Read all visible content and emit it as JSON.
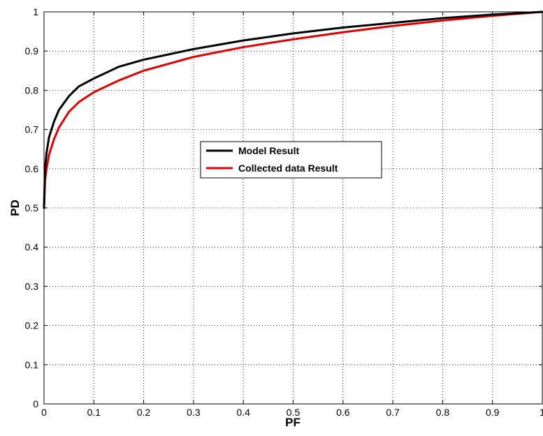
{
  "chart_data": {
    "type": "line",
    "title": "",
    "xlabel": "PF",
    "ylabel": "PD",
    "xlim": [
      0,
      1
    ],
    "ylim": [
      0,
      1
    ],
    "xticks": [
      "0",
      "0.1",
      "0.2",
      "0.3",
      "0.4",
      "0.5",
      "0.6",
      "0.7",
      "0.8",
      "0.9",
      "1"
    ],
    "yticks": [
      "0",
      "0.1",
      "0.2",
      "0.3",
      "0.4",
      "0.5",
      "0.6",
      "0.7",
      "0.8",
      "0.9",
      "1"
    ],
    "grid": true,
    "legend_position": "center-left",
    "series": [
      {
        "name": "Model Result",
        "color": "#000000",
        "x": [
          0,
          0.002,
          0.005,
          0.01,
          0.02,
          0.03,
          0.05,
          0.07,
          0.1,
          0.15,
          0.2,
          0.3,
          0.4,
          0.5,
          0.6,
          0.7,
          0.8,
          0.9,
          1.0
        ],
        "y": [
          0.5,
          0.6,
          0.64,
          0.68,
          0.72,
          0.75,
          0.785,
          0.81,
          0.83,
          0.86,
          0.878,
          0.905,
          0.927,
          0.945,
          0.96,
          0.972,
          0.984,
          0.993,
          1.0
        ]
      },
      {
        "name": "Collected data Result",
        "color": "#e00000",
        "x": [
          0,
          0.002,
          0.005,
          0.01,
          0.02,
          0.03,
          0.05,
          0.07,
          0.1,
          0.15,
          0.2,
          0.3,
          0.4,
          0.5,
          0.6,
          0.7,
          0.8,
          0.9,
          1.0
        ],
        "y": [
          0.5,
          0.57,
          0.6,
          0.635,
          0.675,
          0.705,
          0.745,
          0.77,
          0.795,
          0.825,
          0.85,
          0.885,
          0.91,
          0.93,
          0.948,
          0.964,
          0.978,
          0.99,
          1.0
        ]
      }
    ]
  }
}
